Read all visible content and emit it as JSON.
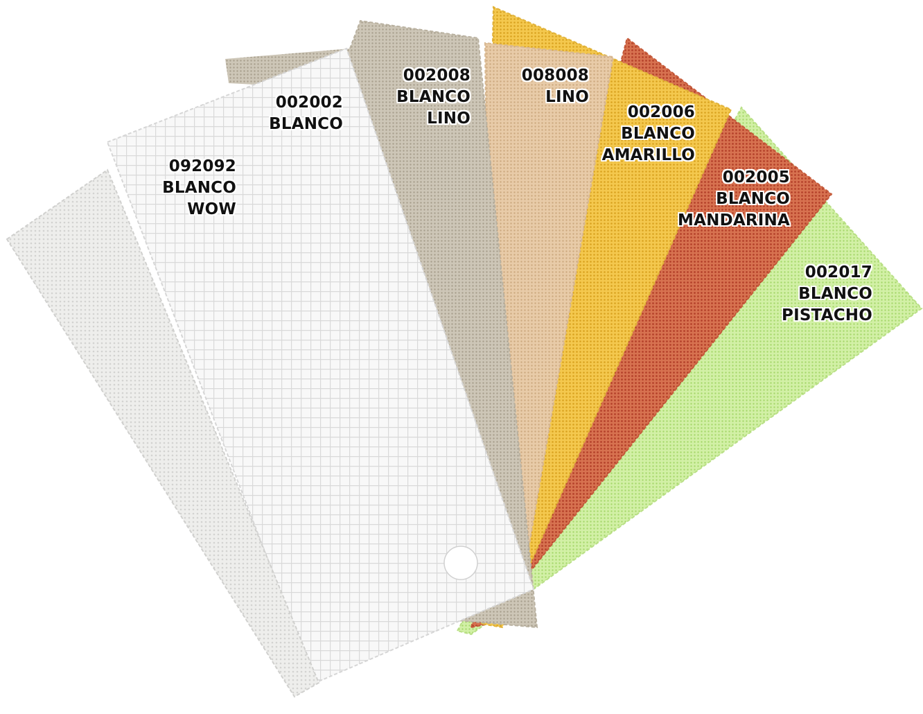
{
  "swatches": [
    {
      "code": "092092",
      "line1": "BLANCO",
      "line2": "WOW",
      "color": "#eeeeec",
      "pattern": "#d3d3d1"
    },
    {
      "code": "002002",
      "line1": "BLANCO",
      "line2": "",
      "color": "#f6f6f6",
      "pattern": "#dcdcdc"
    },
    {
      "code": "002008",
      "line1": "BLANCO",
      "line2": "LINO",
      "color": "#cdc6b7",
      "pattern": "#a89f8d"
    },
    {
      "code": "008008",
      "line1": "LINO",
      "line2": "",
      "color": "#e6c9a6",
      "pattern": "#c9a67d"
    },
    {
      "code": "002006",
      "line1": "BLANCO",
      "line2": "AMARILLO",
      "color": "#f2c44b",
      "pattern": "#d9a21f"
    },
    {
      "code": "002005",
      "line1": "BLANCO",
      "line2": "MANDARINA",
      "color": "#d46a46",
      "pattern": "#b8442a"
    },
    {
      "code": "002017",
      "line1": "BLANCO",
      "line2": "PISTACHO",
      "color": "#cdee9f",
      "pattern": "#a7d86c"
    }
  ]
}
